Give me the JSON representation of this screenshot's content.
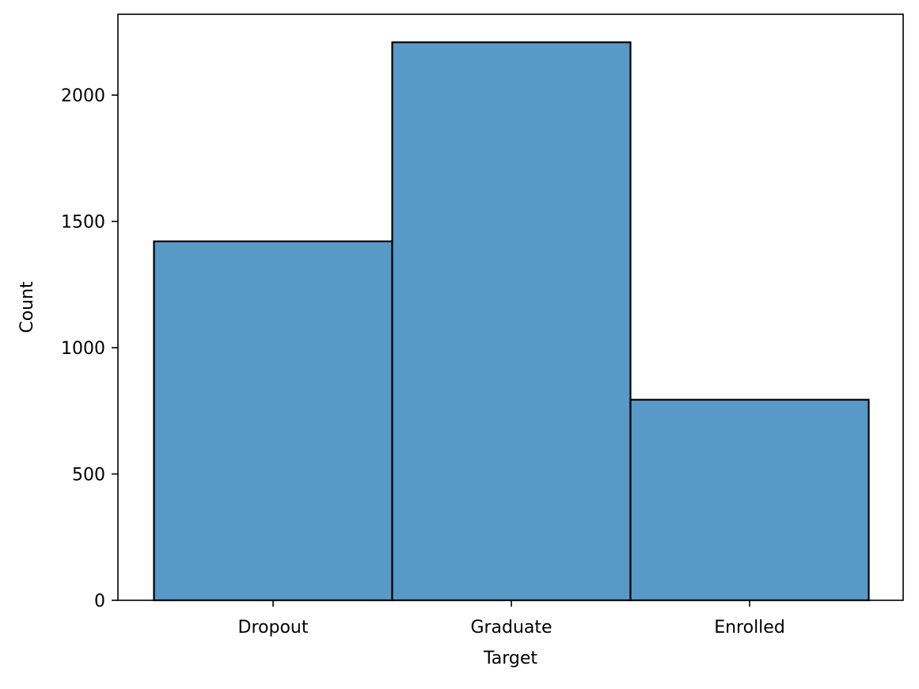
{
  "chart_data": {
    "type": "bar",
    "categories": [
      "Dropout",
      "Graduate",
      "Enrolled"
    ],
    "values": [
      1421,
      2209,
      794
    ],
    "title": "",
    "xlabel": "Target",
    "ylabel": "Count",
    "ylim": [
      0,
      2320
    ],
    "yticks": [
      0,
      500,
      1000,
      1500,
      2000
    ],
    "grid": false,
    "bar_color": "#5799c7",
    "edge_color": "#000000"
  }
}
